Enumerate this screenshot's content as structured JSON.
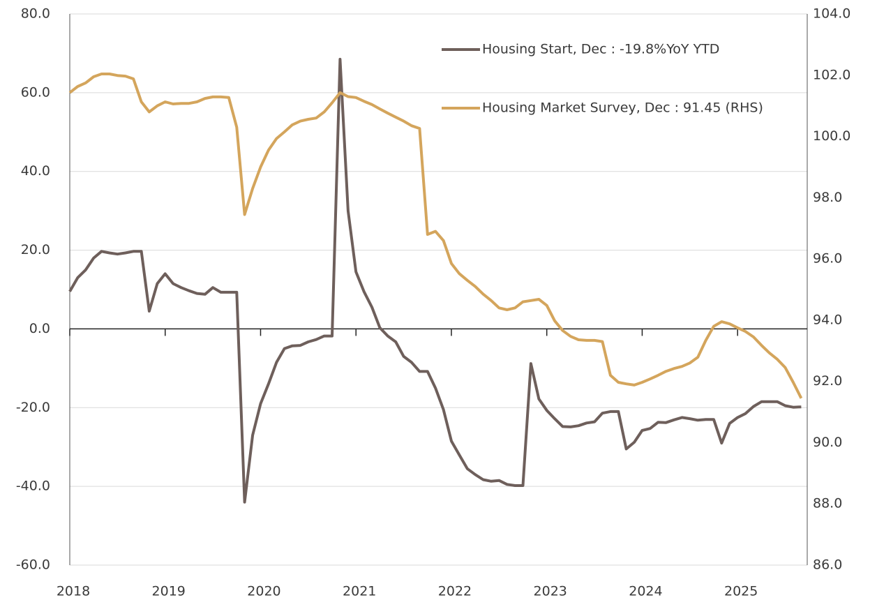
{
  "chart_data": {
    "type": "line",
    "x": [
      2018,
      2018.083,
      2018.167,
      2018.25,
      2018.333,
      2018.417,
      2018.5,
      2018.583,
      2018.667,
      2018.75,
      2018.833,
      2018.917,
      2019,
      2019.083,
      2019.167,
      2019.25,
      2019.333,
      2019.417,
      2019.5,
      2019.583,
      2019.667,
      2019.75,
      2019.833,
      2019.917,
      2020,
      2020.083,
      2020.167,
      2020.25,
      2020.333,
      2020.417,
      2020.5,
      2020.583,
      2020.667,
      2020.75,
      2020.833,
      2020.917,
      2021,
      2021.083,
      2021.167,
      2021.25,
      2021.333,
      2021.417,
      2021.5,
      2021.583,
      2021.667,
      2021.75,
      2021.833,
      2021.917,
      2022,
      2022.083,
      2022.167,
      2022.25,
      2022.333,
      2022.417,
      2022.5,
      2022.583,
      2022.667,
      2022.75,
      2022.833,
      2022.917,
      2023,
      2023.083,
      2023.167,
      2023.25,
      2023.333,
      2023.417,
      2023.5,
      2023.583,
      2023.667,
      2023.75,
      2023.833,
      2023.917,
      2024,
      2024.083,
      2024.167,
      2024.25,
      2024.333,
      2024.417,
      2024.5,
      2024.583,
      2024.667,
      2024.75,
      2024.833,
      2024.917,
      2025,
      2025.083,
      2025.167,
      2025.25,
      2025.333,
      2025.417,
      2025.5,
      2025.583,
      2025.667
    ],
    "series": [
      {
        "name": "Housing Start, Dec : -19.8%YoY YTD",
        "color": "#6e5f5b",
        "axis": "y",
        "values": [
          9.5,
          13,
          15,
          18,
          19.7,
          19.3,
          19,
          19.3,
          19.7,
          19.7,
          4.5,
          11.5,
          14,
          11.5,
          10.5,
          9.7,
          9,
          8.8,
          10.5,
          9.3,
          9.3,
          9.3,
          -44,
          -27,
          -19,
          -14,
          -8.5,
          -5,
          -4.3,
          -4.2,
          -3.3,
          -2.7,
          -1.8,
          -1.8,
          68.5,
          30,
          14.5,
          9.5,
          5.5,
          0.3,
          -1.8,
          -3.3,
          -7,
          -8.5,
          -10.8,
          -10.8,
          -15,
          -20.5,
          -28.5,
          -32,
          -35.5,
          -37,
          -38.3,
          -38.7,
          -38.5,
          -39.5,
          -39.8,
          -39.8,
          -8.8,
          -17.8,
          -20.7,
          -22.8,
          -24.8,
          -24.9,
          -24.6,
          -23.9,
          -23.6,
          -21.4,
          -21,
          -21,
          -30.5,
          -28.8,
          -25.8,
          -25.3,
          -23.7,
          -23.8,
          -23.1,
          -22.5,
          -22.8,
          -23.2,
          -23,
          -23,
          -29,
          -24,
          -22.5,
          -21.5,
          -19.7,
          -18.5,
          -18.5,
          -18.5,
          -19.5,
          -19.9,
          -19.8
        ]
      },
      {
        "name": "Housing Market Survey, Dec : 91.45 (RHS)",
        "color": "#d4a55c",
        "axis": "y2",
        "values": [
          101.43,
          101.63,
          101.75,
          101.95,
          102.04,
          102.04,
          101.99,
          101.97,
          101.88,
          101.13,
          100.8,
          101,
          101.13,
          101.06,
          101.08,
          101.08,
          101.13,
          101.24,
          101.29,
          101.29,
          101.27,
          100.3,
          97.45,
          98.3,
          99,
          99.55,
          99.93,
          100.15,
          100.38,
          100.5,
          100.56,
          100.6,
          100.8,
          101.1,
          101.43,
          101.3,
          101.27,
          101.15,
          101.04,
          100.9,
          100.76,
          100.63,
          100.5,
          100.35,
          100.26,
          96.8,
          96.9,
          96.6,
          95.85,
          95.52,
          95.3,
          95.1,
          94.85,
          94.64,
          94.4,
          94.34,
          94.4,
          94.6,
          94.64,
          94.68,
          94.48,
          93.98,
          93.66,
          93.47,
          93.36,
          93.34,
          93.34,
          93.3,
          92.2,
          91.97,
          91.92,
          91.88,
          91.97,
          92.08,
          92.2,
          92.33,
          92.42,
          92.49,
          92.6,
          92.79,
          93.34,
          93.8,
          93.95,
          93.88,
          93.75,
          93.63,
          93.45,
          93.18,
          92.93,
          92.72,
          92.45,
          91.97,
          91.45
        ]
      }
    ],
    "xlim": [
      2018,
      2025.73
    ],
    "xticks": [
      2018,
      2019,
      2020,
      2021,
      2022,
      2023,
      2024,
      2025
    ],
    "ylim": [
      -60,
      80
    ],
    "yticks": [
      {
        "value": -60,
        "label": "-60.0"
      },
      {
        "value": -40,
        "label": "-40.0"
      },
      {
        "value": -20,
        "label": "-20.0"
      },
      {
        "value": 0,
        "label": "0.0"
      },
      {
        "value": 20,
        "label": "20.0"
      },
      {
        "value": 40,
        "label": "40.0"
      },
      {
        "value": 60,
        "label": "60.0"
      },
      {
        "value": 80,
        "label": "80.0"
      }
    ],
    "y2lim": [
      86,
      104
    ],
    "y2ticks": [
      {
        "value": 86,
        "label": "86.0"
      },
      {
        "value": 88,
        "label": "88.0"
      },
      {
        "value": 90,
        "label": "90.0"
      },
      {
        "value": 92,
        "label": "92.0"
      },
      {
        "value": 94,
        "label": "94.0"
      },
      {
        "value": 96,
        "label": "96.0"
      },
      {
        "value": 98,
        "label": "98.0"
      },
      {
        "value": 100,
        "label": "100.0"
      },
      {
        "value": 102,
        "label": "102.0"
      },
      {
        "value": 104,
        "label": "104.0"
      }
    ],
    "grid": true,
    "legend": "top-right"
  }
}
